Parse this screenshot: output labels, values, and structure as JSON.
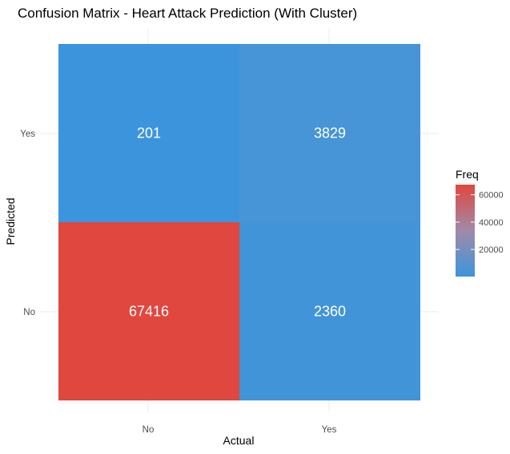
{
  "chart_data": {
    "type": "heatmap",
    "title": "Confusion Matrix - Heart Attack Prediction (With Cluster)",
    "xlabel": "Actual",
    "ylabel": "Predicted",
    "x_categories": [
      "No",
      "Yes"
    ],
    "y_categories": [
      "No",
      "Yes"
    ],
    "cells": [
      {
        "actual": "No",
        "predicted": "Yes",
        "value": 201
      },
      {
        "actual": "Yes",
        "predicted": "Yes",
        "value": 3829
      },
      {
        "actual": "No",
        "predicted": "No",
        "value": 67416
      },
      {
        "actual": "Yes",
        "predicted": "No",
        "value": 2360
      }
    ],
    "legend": {
      "title": "Freq",
      "ticks": [
        20000,
        40000,
        60000
      ],
      "tick_labels": [
        "20000",
        "40000",
        "60000"
      ],
      "low_color": "#3c95dc",
      "high_color": "#e0473e",
      "placement": "right"
    },
    "grid": true
  }
}
